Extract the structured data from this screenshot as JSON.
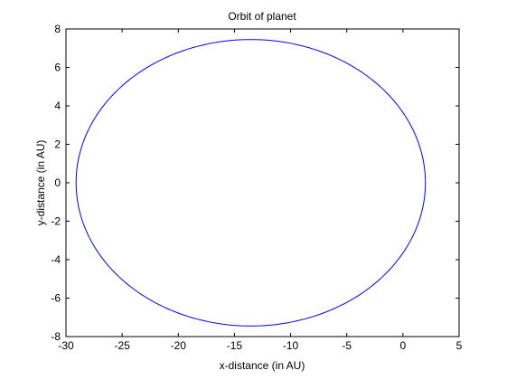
{
  "chart_data": {
    "type": "line",
    "title": "Orbit of planet",
    "xlabel": "x-distance (in AU)",
    "ylabel": "y-distance (in AU)",
    "xlim": [
      -30,
      5
    ],
    "ylim": [
      -8,
      8
    ],
    "xticks": [
      -30,
      -25,
      -20,
      -15,
      -10,
      -5,
      0,
      5
    ],
    "yticks": [
      -8,
      -6,
      -4,
      -2,
      0,
      2,
      4,
      6,
      8
    ],
    "grid": false,
    "series": [
      {
        "color": "#0000ff",
        "shape": "ellipse",
        "center": [
          -13.55,
          0
        ],
        "semi_major_axis": 15.55,
        "semi_minor_axis": 7.45,
        "x_extent": [
          -29.1,
          2.0
        ],
        "y_extent": [
          -7.45,
          7.45
        ]
      }
    ]
  }
}
